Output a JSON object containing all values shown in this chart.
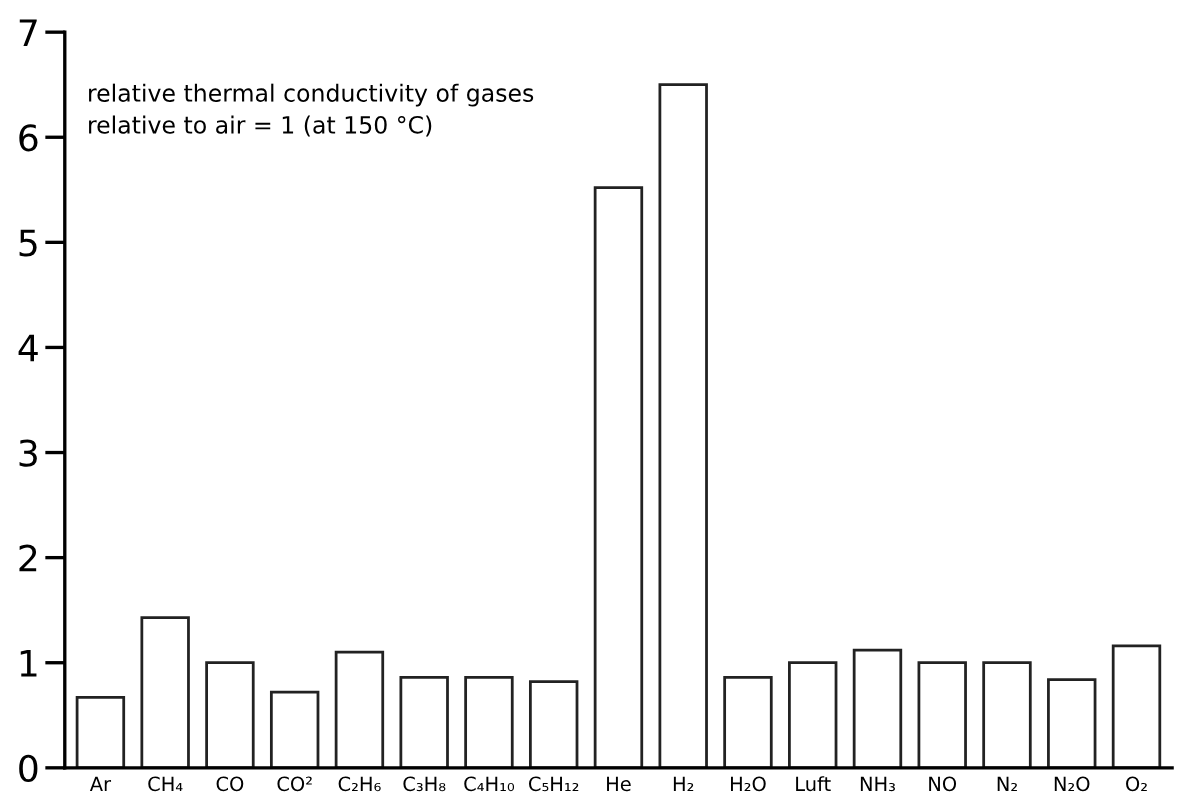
{
  "chart_data": {
    "type": "bar",
    "categories": [
      "Ar",
      "CH₄",
      "CO",
      "CO²",
      "C₂H₆",
      "C₃H₈",
      "C₄H₁₀",
      "C₅H₁₂",
      "He",
      "H₂",
      "H₂O",
      "Luft",
      "NH₃",
      "NO",
      "N₂",
      "N₂O",
      "O₂"
    ],
    "values": [
      0.67,
      1.43,
      1.0,
      0.72,
      1.1,
      0.86,
      0.86,
      0.82,
      5.52,
      6.5,
      0.86,
      1.0,
      1.12,
      1.0,
      1.0,
      0.84,
      1.16
    ],
    "color": "#ffffff",
    "ylim": [
      0,
      7
    ],
    "yticks": [
      0,
      1,
      2,
      3,
      4,
      5,
      6,
      7
    ],
    "grid": false,
    "annotations": [
      "relative thermal conductivity of gases\nrelative to air = 1 (at 150 °C)"
    ]
  }
}
